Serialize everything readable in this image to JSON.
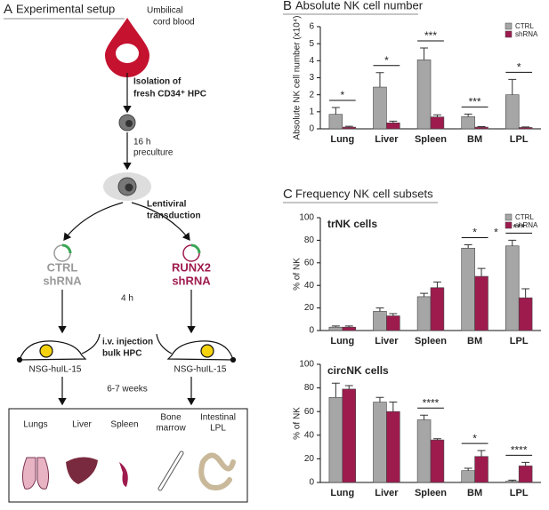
{
  "panel_a": {
    "letter": "A",
    "title": "Experimental setup",
    "cord_blood": [
      "Umbilical",
      "cord blood"
    ],
    "isolation": [
      "Isolation of",
      "fresh CD34⁺ HPC"
    ],
    "preculture": [
      "16 h",
      "preculture"
    ],
    "transduction": [
      "Lentiviral",
      "transduction"
    ],
    "ctrl": [
      "CTRL",
      "shRNA"
    ],
    "runx2": [
      "RUNX2",
      "shRNA"
    ],
    "wait": "4 h",
    "injection": [
      "i.v. injection",
      "bulk HPC"
    ],
    "mouse_strain": [
      "NSG-huIL-15",
      "NSG-huIL-15"
    ],
    "duration": "6-7 weeks",
    "organs": [
      [
        "Lungs"
      ],
      [
        "Liver"
      ],
      [
        "Spleen"
      ],
      [
        "Bone",
        "marrow"
      ],
      [
        "Intestinal",
        "LPL"
      ]
    ]
  },
  "panel_b": {
    "letter": "B"
  },
  "panel_c": {
    "letter": "C",
    "title": "Frequency NK cell subsets"
  },
  "chart_data": [
    {
      "type": "bar",
      "title": "Absolute NK cell number",
      "y_label": "Absolute NK cell number (x10⁴)",
      "categories": [
        "Lung",
        "Liver",
        "Spleen",
        "BM",
        "LPL"
      ],
      "series": [
        {
          "name": "CTRL",
          "color": "#a6a6a6",
          "values": [
            0.85,
            2.45,
            4.05,
            0.72,
            2.0
          ],
          "errors": [
            0.4,
            0.85,
            0.7,
            0.15,
            0.9
          ]
        },
        {
          "name": "shRNA",
          "color": "#9e1b4e",
          "values": [
            0.1,
            0.35,
            0.7,
            0.1,
            0.08
          ],
          "errors": [
            0.05,
            0.1,
            0.12,
            0.03,
            0.03
          ]
        }
      ],
      "ylim": [
        0,
        6
      ],
      "yticks": [
        0,
        1,
        2,
        3,
        4,
        5,
        6
      ],
      "legend": "top-right",
      "annotations": [
        {
          "category": "Lung",
          "text": "*"
        },
        {
          "category": "Liver",
          "text": "*"
        },
        {
          "category": "Spleen",
          "text": "***"
        },
        {
          "category": "BM",
          "text": "***"
        },
        {
          "category": "LPL",
          "text": "*"
        }
      ]
    },
    {
      "type": "bar",
      "subtitle": "trNK cells",
      "y_label": "% of NK",
      "categories": [
        "Lung",
        "Liver",
        "Spleen",
        "BM",
        "LPL"
      ],
      "series": [
        {
          "name": "CTRL",
          "color": "#a6a6a6",
          "values": [
            3,
            17,
            30,
            73,
            75
          ],
          "errors": [
            1,
            3,
            3,
            3,
            5
          ]
        },
        {
          "name": "shRNA",
          "color": "#9e1b4e",
          "values": [
            3,
            13,
            38,
            48,
            29
          ],
          "errors": [
            1,
            2,
            5,
            7,
            8
          ]
        }
      ],
      "ylim": [
        0,
        100
      ],
      "yticks": [
        0,
        20,
        40,
        60,
        80,
        100
      ],
      "legend": "top-right",
      "annotations": [
        {
          "category": "BM",
          "text": "*"
        },
        {
          "category": "BM",
          "text": "*"
        },
        {
          "category": "LPL",
          "text": "***"
        }
      ]
    },
    {
      "type": "bar",
      "subtitle": "circNK cells",
      "y_label": "% of NK",
      "categories": [
        "Lung",
        "Liver",
        "Spleen",
        "BM",
        "LPL"
      ],
      "series": [
        {
          "name": "CTRL",
          "color": "#a6a6a6",
          "values": [
            72,
            68,
            53,
            10,
            1
          ],
          "errors": [
            12,
            4,
            4,
            2,
            1
          ]
        },
        {
          "name": "shRNA",
          "color": "#9e1b4e",
          "values": [
            79,
            60,
            36,
            22,
            14
          ],
          "errors": [
            3,
            8,
            1,
            5,
            3
          ]
        }
      ],
      "ylim": [
        0,
        100
      ],
      "yticks": [
        0,
        20,
        40,
        60,
        80,
        100
      ],
      "annotations": [
        {
          "category": "Spleen",
          "text": "****"
        },
        {
          "category": "BM",
          "text": "*"
        },
        {
          "category": "LPL",
          "text": "****"
        }
      ]
    }
  ]
}
